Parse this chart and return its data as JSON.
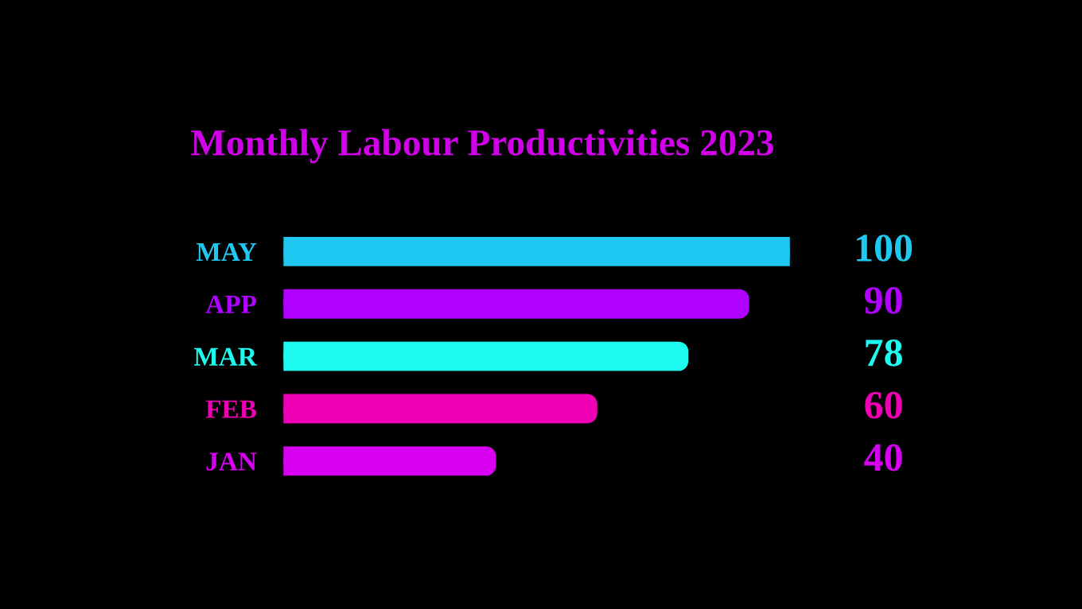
{
  "chart_data": {
    "type": "bar",
    "orientation": "horizontal",
    "title": "Monthly Labour Productivities 2023",
    "categories": [
      "MAY",
      "APP",
      "MAR",
      "FEB",
      "JAN"
    ],
    "values": [
      100,
      90,
      78,
      60,
      40
    ],
    "colors": [
      "#1ec8f0",
      "#b000ff",
      "#1efaf0",
      "#f000b4",
      "#d800f0"
    ],
    "data_labels": true,
    "grid": false,
    "legend": false
  }
}
